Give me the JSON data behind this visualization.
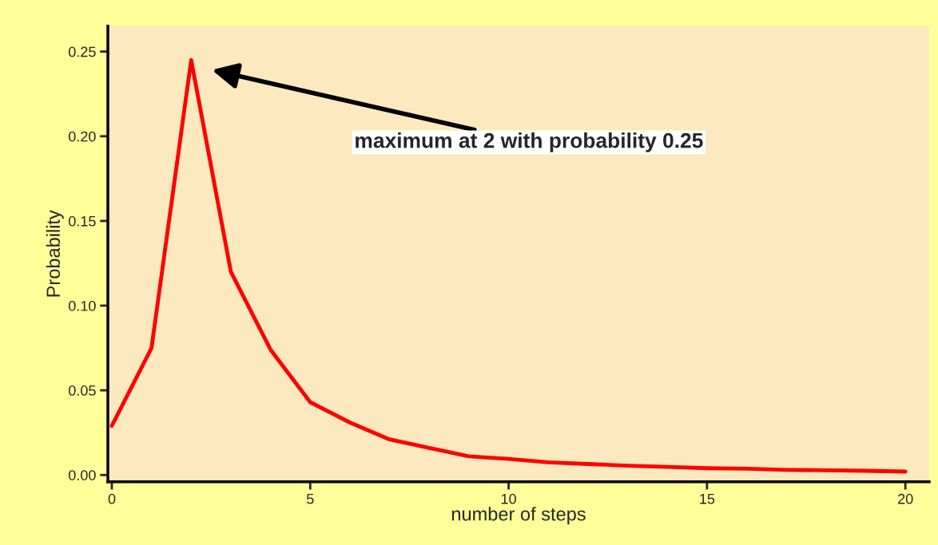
{
  "chart_data": {
    "type": "line",
    "xlabel": "number of steps",
    "ylabel": "Probability",
    "x": [
      0,
      1,
      2,
      3,
      4,
      5,
      6,
      7,
      8,
      9,
      10,
      11,
      12,
      13,
      14,
      15,
      16,
      17,
      18,
      19,
      20
    ],
    "series": [
      {
        "color": "#ff0000",
        "values": [
          0.029,
          0.075,
          0.245,
          0.12,
          0.074,
          0.043,
          0.031,
          0.021,
          0.016,
          0.011,
          0.0095,
          0.0075,
          0.0065,
          0.0055,
          0.0048,
          0.004,
          0.0037,
          0.003,
          0.0028,
          0.0025,
          0.002
        ]
      }
    ],
    "xlim": [
      -0.1,
      20.6
    ],
    "ylim": [
      -0.004,
      0.265
    ],
    "xticks": [
      0,
      5,
      10,
      15,
      20
    ],
    "yticks": [
      {
        "value": 0,
        "label": "0.00"
      },
      {
        "value": 0.05,
        "label": "0.05"
      },
      {
        "value": 0.1,
        "label": "0.10"
      },
      {
        "value": 0.15,
        "label": "0.15"
      },
      {
        "value": 0.2,
        "label": "0.20"
      },
      {
        "value": 0.25,
        "label": "0.25"
      }
    ],
    "grid": false,
    "legend": false,
    "marker": "none",
    "line_style": "solid",
    "annotations": [
      "maximum at 2 with probability 0.25"
    ]
  }
}
